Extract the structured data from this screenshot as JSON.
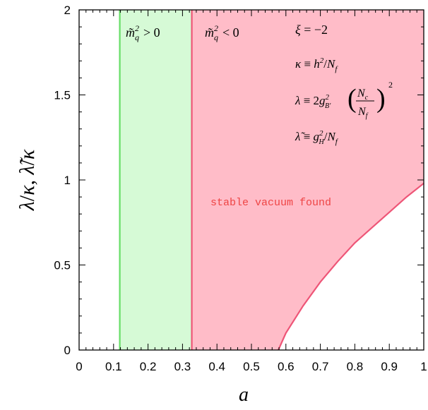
{
  "chart_data": {
    "type": "area",
    "xlabel": "a",
    "ylabel": "λ/κ,  λ̃/κ",
    "xlim": [
      0,
      1
    ],
    "ylim": [
      0,
      2
    ],
    "x_ticks": [
      "0",
      "0.1",
      "0.2",
      "0.3",
      "0.4",
      "0.5",
      "0.6",
      "0.7",
      "0.8",
      "0.9",
      "1"
    ],
    "y_ticks": [
      "0",
      "0.5",
      "1",
      "1.5",
      "2"
    ],
    "grid": false,
    "regions": [
      {
        "label": "m̃_q² > 0",
        "x_range": [
          0.118,
          0.327
        ],
        "color": "#d6fad6",
        "edge_color": "#66dd66"
      },
      {
        "label": "m̃_q² < 0",
        "x_range": [
          0.327,
          1.0
        ],
        "color": "#ffbcc8",
        "edge_color": "#ee5577"
      }
    ],
    "boundary_curve": {
      "x": [
        0.578,
        0.6,
        0.65,
        0.7,
        0.75,
        0.8,
        0.85,
        0.9,
        0.95,
        1.0
      ],
      "y": [
        0.0,
        0.1,
        0.26,
        0.4,
        0.52,
        0.63,
        0.72,
        0.81,
        0.9,
        0.98
      ],
      "color": "#ee5577"
    },
    "annotations": {
      "stable": "stable vacuum found",
      "xi": "ξ = −2",
      "kappa": "κ ≡ h²/N_f",
      "lambda": "λ ≡ 2g²_B′ (N_c/N_f)²",
      "lambda_tilde": "λ̃ ≡ g²_H/N_f"
    }
  }
}
